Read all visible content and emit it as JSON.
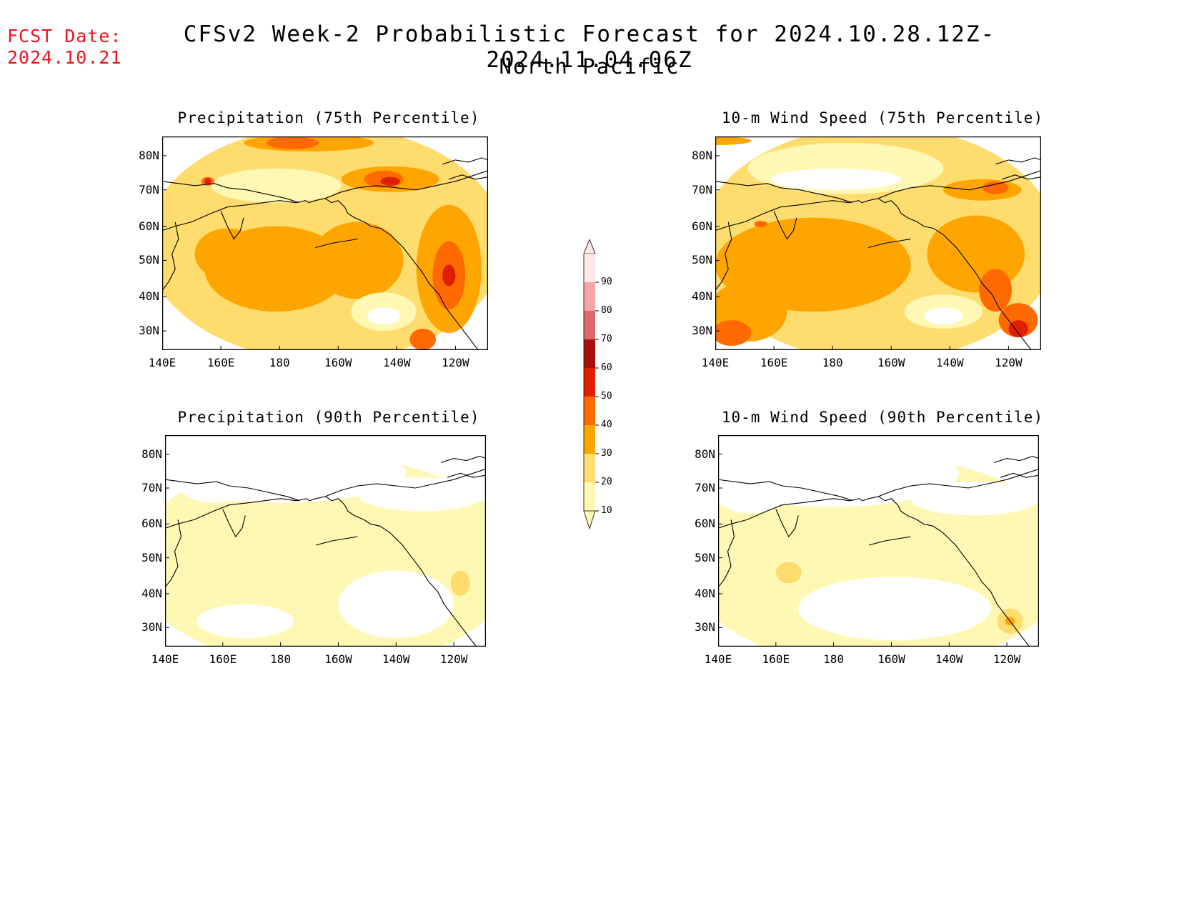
{
  "header": {
    "fcst_label": "FCST Date:",
    "fcst_date": "2024.10.21",
    "title": "CFSv2 Week-2 Probabilistic Forecast for 2024.10.28.12Z-2024.11.04.06Z",
    "subtitle": "North Pacific"
  },
  "panels": [
    {
      "title": "Precipitation (75th Percentile)"
    },
    {
      "title": "10-m Wind Speed (75th Percentile)"
    },
    {
      "title": "Precipitation (90th Percentile)"
    },
    {
      "title": "10-m Wind Speed (90th Percentile)"
    }
  ],
  "axes": {
    "lat_labels": [
      "80N",
      "70N",
      "60N",
      "50N",
      "40N",
      "30N"
    ],
    "lon_labels": [
      "140E",
      "160E",
      "180",
      "160W",
      "140W",
      "120W"
    ]
  },
  "colorbar": {
    "labels": [
      "90",
      "80",
      "70",
      "60",
      "50",
      "40",
      "30",
      "20",
      "10"
    ],
    "colors": [
      "#fde6e6",
      "#f4a6a6",
      "#e06a6a",
      "#a50f0f",
      "#e01e00",
      "#ff6a00",
      "#ffa500",
      "#ffdc6e",
      "#fff8b4"
    ]
  },
  "colors": {
    "c10": "#fff8b4",
    "c20": "#ffdc6e",
    "c30": "#ffa500",
    "c40": "#ff6a00",
    "c50": "#e01e00",
    "c60": "#a50f0f",
    "fcst_red": "#e8141e"
  }
}
